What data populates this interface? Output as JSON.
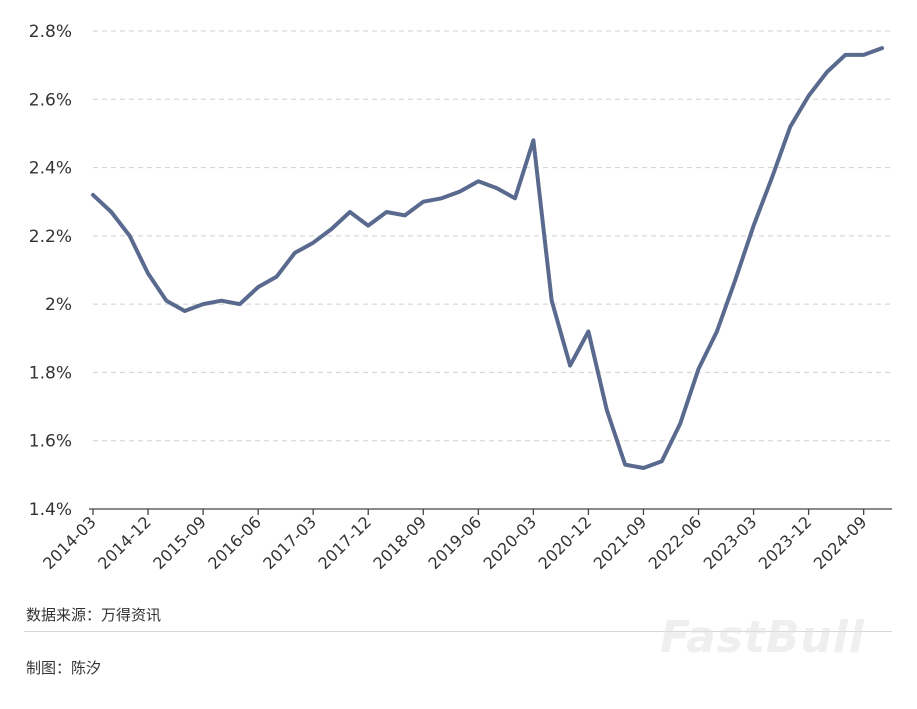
{
  "chart_data": {
    "type": "line",
    "x": [
      "2014-03",
      "2014-06",
      "2014-09",
      "2014-12",
      "2015-03",
      "2015-06",
      "2015-09",
      "2015-12",
      "2016-03",
      "2016-06",
      "2016-09",
      "2016-12",
      "2017-03",
      "2017-06",
      "2017-09",
      "2017-12",
      "2018-03",
      "2018-06",
      "2018-09",
      "2018-12",
      "2019-03",
      "2019-06",
      "2019-09",
      "2019-12",
      "2020-03",
      "2020-06",
      "2020-09",
      "2020-12",
      "2021-03",
      "2021-06",
      "2021-09",
      "2021-12",
      "2022-03",
      "2022-06",
      "2022-09",
      "2022-12",
      "2023-03",
      "2023-06",
      "2023-09",
      "2023-12",
      "2024-03",
      "2024-06",
      "2024-09",
      "2024-12"
    ],
    "series": [
      {
        "values": [
          2.32,
          2.27,
          2.2,
          2.09,
          2.01,
          1.98,
          2.0,
          2.01,
          2.0,
          2.05,
          2.08,
          2.15,
          2.18,
          2.22,
          2.27,
          2.23,
          2.27,
          2.26,
          2.3,
          2.31,
          2.33,
          2.36,
          2.34,
          2.31,
          2.48,
          2.01,
          1.82,
          1.92,
          1.69,
          1.53,
          1.52,
          1.54,
          1.65,
          1.81,
          1.92,
          2.07,
          2.23,
          2.37,
          2.52,
          2.61,
          2.68,
          2.73,
          2.73,
          2.75
        ],
        "color": "#5a6a8e"
      }
    ],
    "xticks": [
      "2014-03",
      "2014-12",
      "2015-09",
      "2016-06",
      "2017-03",
      "2017-12",
      "2018-09",
      "2019-06",
      "2020-03",
      "2020-12",
      "2021-09",
      "2022-06",
      "2023-03",
      "2023-12",
      "2024-09"
    ],
    "yticks": [
      "1.4%",
      "1.6%",
      "1.8%",
      "2%",
      "2.2%",
      "2.4%",
      "2.6%",
      "2.8%"
    ],
    "ytick_values": [
      1.4,
      1.6,
      1.8,
      2.0,
      2.2,
      2.4,
      2.6,
      2.8
    ],
    "ylim": [
      1.4,
      2.8
    ],
    "grid": true,
    "legend": "none"
  },
  "footer": {
    "source": "数据来源：万得资讯",
    "author": "制图：陈汐",
    "watermark": "FastBull"
  }
}
